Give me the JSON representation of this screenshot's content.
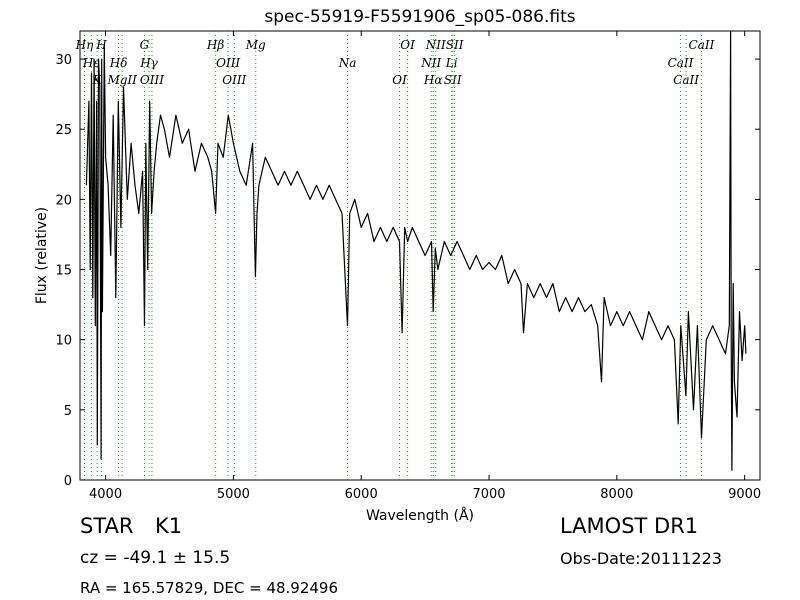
{
  "chart_data": {
    "type": "line",
    "title": "spec-55919-F5591906_sp05-086.fits",
    "xlabel": "Wavelength (Å)",
    "ylabel": "Flux (relative)",
    "xlim": [
      3800,
      9120
    ],
    "ylim": [
      0,
      32
    ],
    "xticks": [
      4000,
      5000,
      6000,
      7000,
      8000,
      9000
    ],
    "yticks": [
      0,
      5,
      10,
      15,
      20,
      25,
      30
    ],
    "grid": false,
    "series": [
      {
        "color": "#000000",
        "x": [
          3850,
          3870,
          3880,
          3890,
          3900,
          3910,
          3920,
          3930,
          3935,
          3945,
          3955,
          3965,
          3970,
          3975,
          3990,
          4000,
          4020,
          4040,
          4060,
          4080,
          4100,
          4120,
          4140,
          4170,
          4200,
          4230,
          4260,
          4290,
          4305,
          4315,
          4330,
          4345,
          4360,
          4380,
          4400,
          4430,
          4460,
          4500,
          4550,
          4600,
          4650,
          4700,
          4750,
          4800,
          4830,
          4861,
          4880,
          4920,
          4960,
          5000,
          5050,
          5100,
          5150,
          5172,
          5185,
          5200,
          5250,
          5300,
          5350,
          5400,
          5450,
          5500,
          5550,
          5600,
          5650,
          5700,
          5750,
          5800,
          5850,
          5893,
          5910,
          5950,
          6000,
          6050,
          6100,
          6150,
          6200,
          6250,
          6300,
          6320,
          6340,
          6363,
          6400,
          6450,
          6500,
          6550,
          6563,
          6580,
          6600,
          6650,
          6700,
          6750,
          6800,
          6850,
          6900,
          6950,
          7000,
          7050,
          7100,
          7150,
          7200,
          7250,
          7270,
          7300,
          7350,
          7400,
          7450,
          7500,
          7550,
          7600,
          7650,
          7700,
          7750,
          7800,
          7850,
          7880,
          7900,
          7950,
          8000,
          8050,
          8100,
          8150,
          8200,
          8250,
          8300,
          8350,
          8400,
          8450,
          8480,
          8500,
          8540,
          8560,
          8600,
          8630,
          8662,
          8700,
          8750,
          8800,
          8850,
          8880,
          8890,
          8895,
          8900,
          8910,
          8920,
          8940,
          8960,
          8980,
          9000,
          9010
        ],
        "y": [
          21,
          27,
          15,
          29,
          13,
          30,
          11,
          27,
          2.5,
          30,
          28,
          1.5,
          30,
          12,
          31,
          23,
          21,
          16,
          26,
          13,
          27,
          18,
          28,
          20,
          24,
          21,
          19,
          22,
          11,
          24,
          15,
          27,
          19,
          22,
          24,
          26,
          25,
          23,
          26,
          24,
          25,
          22,
          24,
          23,
          22,
          19,
          24,
          23,
          26,
          24,
          22,
          21,
          24,
          14.5,
          19,
          21,
          23,
          22,
          21,
          22,
          21,
          22,
          21,
          20,
          21,
          20,
          21,
          20,
          19,
          11,
          19,
          20,
          18,
          19,
          17,
          18,
          17,
          18,
          17,
          10.5,
          18,
          17,
          18,
          17,
          16,
          17,
          12,
          16.5,
          15,
          17,
          16,
          17,
          16,
          15,
          16,
          15,
          15.5,
          15,
          16,
          14,
          15,
          14,
          10.5,
          14,
          13,
          14,
          13,
          14,
          12,
          13,
          12,
          13,
          12,
          12.5,
          11,
          7,
          13,
          11,
          12,
          11,
          12,
          11,
          10,
          12,
          11,
          10,
          11,
          10,
          4,
          11,
          6,
          12,
          5,
          11,
          3,
          10,
          11,
          10,
          9,
          11,
          32,
          10,
          0.7,
          14,
          7,
          4.5,
          12,
          8.5,
          11,
          9
        ]
      }
    ],
    "lines": [
      {
        "label": "Hη",
        "x": 3835
      },
      {
        "label": "Hε",
        "x": 3889
      },
      {
        "label": "K",
        "x": 3934
      },
      {
        "label": "H",
        "x": 3968
      },
      {
        "label": "Hδ",
        "x": 4102
      },
      {
        "label": "MgII",
        "x": 4130
      },
      {
        "label": "G",
        "x": 4304
      },
      {
        "label": "Hγ",
        "x": 4340
      },
      {
        "label": "OIII",
        "x": 4363
      },
      {
        "label": "Hβ",
        "x": 4861
      },
      {
        "label": "OIII",
        "x": 4959
      },
      {
        "label": "OIII",
        "x": 5007
      },
      {
        "label": "Mg",
        "x": 5175
      },
      {
        "label": "Na",
        "x": 5893
      },
      {
        "label": "OI",
        "x": 6300
      },
      {
        "label": "OI",
        "x": 6363
      },
      {
        "label": "NII",
        "x": 6548
      },
      {
        "label": "Hα",
        "x": 6563
      },
      {
        "label": "NII",
        "x": 6583
      },
      {
        "label": "Li",
        "x": 6708
      },
      {
        "label": "SII",
        "x": 6716
      },
      {
        "label": "SII",
        "x": 6731
      },
      {
        "label": "CaII",
        "x": 8498
      },
      {
        "label": "CaII",
        "x": 8542
      },
      {
        "label": "CaII",
        "x": 8662
      }
    ],
    "line_color": "#2ca02c"
  },
  "info": {
    "object_class": "STAR",
    "object_subclass": "K1",
    "survey": "LAMOST DR1",
    "redshift": "cz = -49.1 ± 15.5",
    "obs_date": "Obs-Date:20111223",
    "coords": "RA = 165.57829, DEC = 48.92496"
  }
}
